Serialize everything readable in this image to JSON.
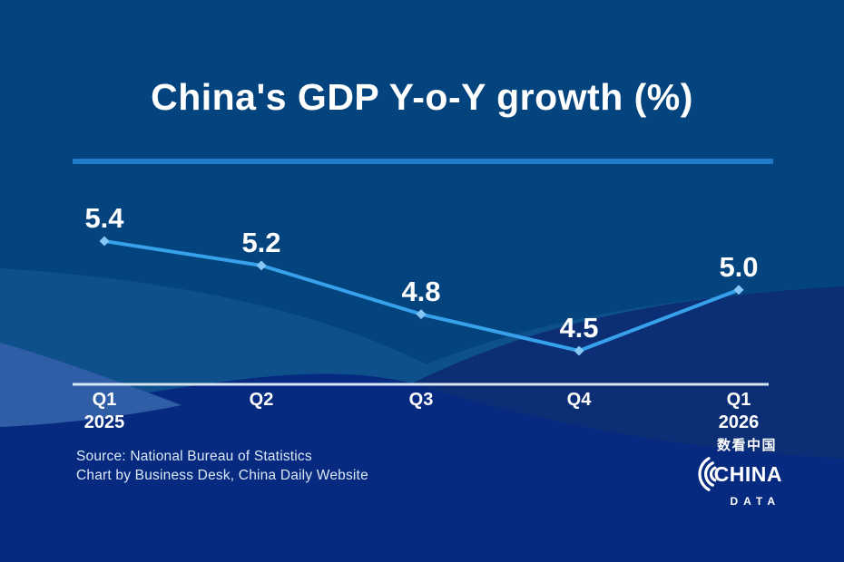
{
  "title": "China's GDP Y-o-Y growth (%)",
  "source": {
    "line1": "Source: National Bureau of Statistics",
    "line2": "Chart by Business Desk, China Daily Website"
  },
  "logo": {
    "chinese": "数看中国",
    "name_top": "CHINA",
    "name_bottom": "DATA"
  },
  "colors": {
    "background_top": "#03447E",
    "background_band": "#0E508B",
    "background_hill": "#0B2E74",
    "background_royal": "#062A80",
    "background_crescent": "#2F5EA6",
    "divider": "#2179C9",
    "line": "#38A1EC",
    "marker": "#85C6F7",
    "axis_line": "#D8E6F4",
    "text": "#FFFFFF",
    "source_text": "#DCE8F5"
  },
  "chart_data": {
    "type": "line",
    "title": "China's GDP Y-o-Y growth (%)",
    "series_name": "GDP year-on-year growth (%)",
    "categories": [
      {
        "label": "Q1",
        "sub": "2025"
      },
      {
        "label": "Q2",
        "sub": ""
      },
      {
        "label": "Q3",
        "sub": ""
      },
      {
        "label": "Q4",
        "sub": ""
      },
      {
        "label": "Q1",
        "sub": "2026"
      }
    ],
    "values": [
      5.4,
      5.2,
      4.8,
      4.5,
      5.0
    ],
    "data_labels": true,
    "marker": "diamond",
    "grid": false,
    "legend": false,
    "xlabel": "",
    "ylabel": "",
    "ylim": [
      4.2,
      5.7
    ]
  }
}
